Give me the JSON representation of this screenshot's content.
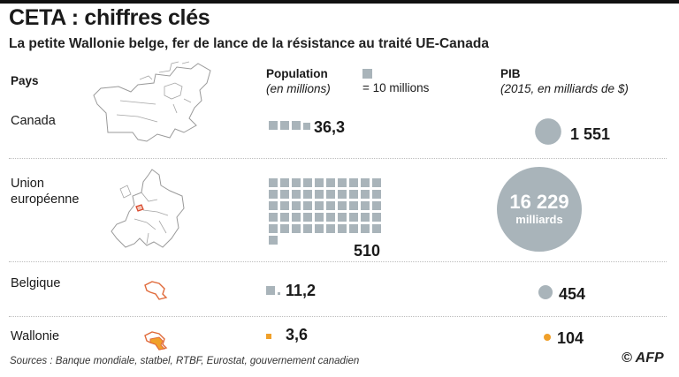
{
  "title": "CETA : chiffres clés",
  "subtitle": "La petite Wallonie belge, fer de lance de la résistance au traité UE-Canada",
  "headers": {
    "country": "Pays",
    "population": "Population",
    "population_unit": "(en millions)",
    "legend": "= 10 millions",
    "gdp": "PIB",
    "gdp_unit": "(2015, en milliards de $)"
  },
  "rows": [
    {
      "label": "Canada",
      "population": "36,3",
      "gdp": "1 551"
    },
    {
      "label": "Union\neuropéenne",
      "population": "510",
      "gdp": "16 229",
      "gdp_suffix": "milliards"
    },
    {
      "label": "Belgique",
      "population": "11,2",
      "gdp": "454"
    },
    {
      "label": "Wallonie",
      "population": "3,6",
      "gdp": "104"
    }
  ],
  "source": "Sources : Banque mondiale, statbel, RTBF, Eurostat, gouvernement canadien",
  "credit": "© AFP",
  "colors": {
    "gray": "#a9b4ba",
    "orange": "#f0a02a",
    "text": "#1a1a1a"
  },
  "chart_data": {
    "type": "table",
    "columns": [
      "Pays",
      "Population",
      "PIB"
    ],
    "population_unit": "millions",
    "gdp_unit": "milliards de $ (2015)",
    "square_value": 10,
    "categories": [
      "Canada",
      "Union européenne",
      "Belgique",
      "Wallonie"
    ],
    "series": [
      {
        "name": "Population",
        "values": [
          36.3,
          510,
          11.2,
          3.6
        ]
      },
      {
        "name": "PIB",
        "values": [
          1551,
          16229,
          454,
          104
        ]
      }
    ]
  }
}
